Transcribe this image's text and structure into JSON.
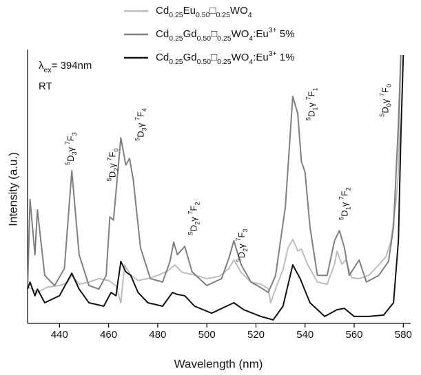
{
  "chart_data": {
    "type": "line",
    "xlabel": "Wavelength (nm)",
    "ylabel": "Intensity (a.u.)",
    "xlim": [
      427,
      583
    ],
    "ylim": [
      0,
      100
    ],
    "xticks": [
      440,
      460,
      480,
      500,
      520,
      540,
      560,
      580
    ],
    "texts": [
      "λex= 394nm",
      "RT"
    ],
    "annotations": [
      {
        "text": "5D3γ 7F3",
        "x": 445,
        "y": 59
      },
      {
        "text": "5D2γ 7F0",
        "x": 462,
        "y": 53
      },
      {
        "text": "5D3γ 7F4",
        "x": 473.5,
        "y": 68
      },
      {
        "text": "5D2γ 7F2",
        "x": 495,
        "y": 33
      },
      {
        "text": "5D2γ 7F3",
        "x": 514.5,
        "y": 23
      },
      {
        "text": "5D1γ 7F1",
        "x": 543,
        "y": 75.6
      },
      {
        "text": "5D1γ 7F2",
        "x": 556.5,
        "y": 38.5
      },
      {
        "text": "5D0γ 7F0",
        "x": 573,
        "y": 77
      }
    ],
    "series": [
      {
        "name": "Cd0.25Eu0.50□0.25WO4",
        "color": "#bdbdbd",
        "x": [
          427,
          429,
          431,
          435,
          440,
          443,
          445,
          448,
          452,
          456,
          460,
          463,
          465,
          466.5,
          469,
          472,
          476,
          480,
          484,
          487,
          490,
          495,
          500,
          505,
          509,
          511,
          514,
          518,
          522,
          525,
          526,
          528,
          531,
          533,
          535,
          537,
          538.5,
          541,
          545,
          549,
          552,
          553,
          555,
          556.5,
          559,
          562,
          566,
          570,
          573,
          575,
          577,
          578,
          579
        ],
        "values": [
          13.5,
          12.8,
          11.5,
          13.5,
          14.1,
          15,
          17.9,
          14.6,
          15.4,
          16.7,
          16,
          14,
          7.7,
          21.8,
          18,
          16,
          16.7,
          17.9,
          19.5,
          21.8,
          19,
          18,
          16.7,
          17.5,
          20.5,
          23.6,
          19,
          15.4,
          14.6,
          13,
          7.7,
          13,
          20,
          28,
          31.3,
          27,
          27.7,
          22,
          15.4,
          14.6,
          22,
          26.9,
          22,
          23.6,
          17,
          16.7,
          17.9,
          21.8,
          25,
          30.8,
          45,
          56.4,
          100
        ]
      },
      {
        "name": "Cd0.25Gd0.50□0.25WO4:Eu3+ 5%",
        "color": "#7f7f7f",
        "x": [
          427,
          428,
          430,
          431,
          434,
          438,
          442,
          445,
          448,
          452,
          456,
          459,
          460.5,
          462,
          465,
          467,
          468.5,
          470,
          473,
          477,
          482,
          485,
          486.5,
          488,
          491,
          494,
          500,
          506,
          509,
          511,
          514,
          518,
          522,
          525,
          528,
          532,
          535,
          537,
          538.5,
          540,
          542,
          545,
          549,
          552,
          554,
          556,
          558,
          562,
          565,
          570,
          574,
          576,
          578,
          579
        ],
        "values": [
          12.8,
          46.2,
          25.6,
          42.3,
          17.9,
          14.1,
          20.5,
          56.9,
          25.6,
          14.1,
          12.8,
          17.9,
          39.7,
          38.5,
          69.2,
          59,
          61.5,
          53.8,
          28.2,
          16.7,
          15.4,
          23.1,
          30.3,
          25.6,
          28.7,
          19.2,
          14.1,
          16.7,
          24.4,
          30.8,
          21.8,
          15.4,
          13.3,
          11.5,
          17.9,
          43.6,
          84.6,
          78.2,
          60.3,
          56.4,
          35.9,
          17.9,
          17.9,
          30.8,
          34.6,
          28.2,
          17.9,
          23.6,
          15.4,
          17.9,
          23.1,
          35.9,
          74.4,
          100
        ]
      },
      {
        "name": "Cd0.25Gd0.50□0.25WO4:Eu3+ 1%",
        "color": "#111111",
        "x": [
          427,
          428,
          430,
          431,
          434,
          440,
          445,
          448,
          452,
          458,
          461,
          463,
          465,
          467,
          469,
          472,
          476,
          482,
          486,
          488,
          491,
          495,
          502,
          508,
          511,
          515,
          522,
          527,
          531,
          535,
          538,
          542,
          548,
          553,
          556,
          560,
          566,
          572,
          576,
          578,
          579,
          580
        ],
        "values": [
          12.8,
          15.4,
          10.3,
          12.8,
          7.7,
          10.3,
          18.7,
          12.8,
          7.7,
          6.4,
          11.5,
          10.3,
          23.1,
          19.2,
          17.9,
          11.5,
          7.7,
          6.4,
          11.5,
          10.8,
          10.3,
          6.4,
          3.8,
          6.4,
          7.7,
          5.1,
          2.6,
          1.3,
          6.4,
          21.8,
          16.7,
          7.7,
          2.6,
          5.1,
          5.6,
          2.6,
          2.6,
          3.1,
          7.7,
          30.8,
          69.2,
          100
        ]
      }
    ]
  }
}
